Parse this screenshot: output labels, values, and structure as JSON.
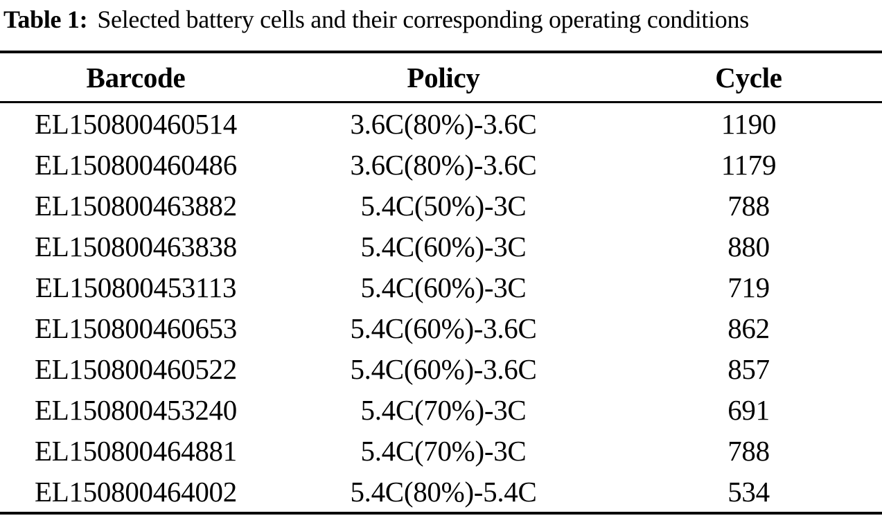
{
  "caption": {
    "label": "Table 1:",
    "text": "Selected battery cells and their corresponding operating conditions"
  },
  "table": {
    "columns": [
      "Barcode",
      "Policy",
      "Cycle"
    ],
    "rows": [
      {
        "barcode": "EL150800460514",
        "policy": "3.6C(80%)-3.6C",
        "cycle": "1190"
      },
      {
        "barcode": "EL150800460486",
        "policy": "3.6C(80%)-3.6C",
        "cycle": "1179"
      },
      {
        "barcode": "EL150800463882",
        "policy": "5.4C(50%)-3C",
        "cycle": "788"
      },
      {
        "barcode": "EL150800463838",
        "policy": "5.4C(60%)-3C",
        "cycle": "880"
      },
      {
        "barcode": "EL150800453113",
        "policy": "5.4C(60%)-3C",
        "cycle": "719"
      },
      {
        "barcode": "EL150800460653",
        "policy": "5.4C(60%)-3.6C",
        "cycle": "862"
      },
      {
        "barcode": "EL150800460522",
        "policy": "5.4C(60%)-3.6C",
        "cycle": "857"
      },
      {
        "barcode": "EL150800453240",
        "policy": "5.4C(70%)-3C",
        "cycle": "691"
      },
      {
        "barcode": "EL150800464881",
        "policy": "5.4C(70%)-3C",
        "cycle": "788"
      },
      {
        "barcode": "EL150800464002",
        "policy": "5.4C(80%)-5.4C",
        "cycle": "534"
      }
    ]
  },
  "colors": {
    "background": "#ffffff",
    "text": "#000000",
    "rule": "#000000"
  }
}
